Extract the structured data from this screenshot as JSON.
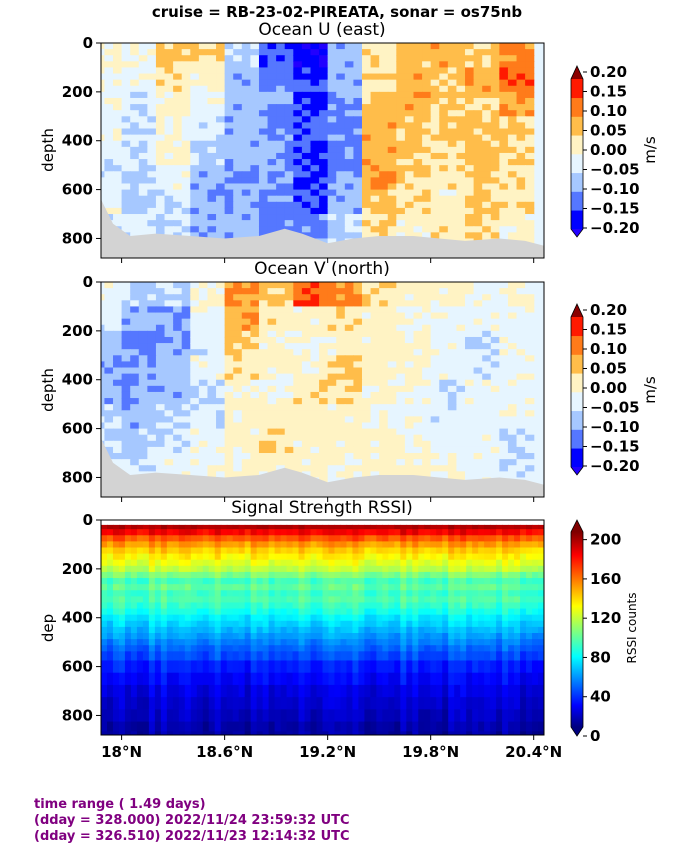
{
  "suptitle": "cruise = RB-23-02-PIREATA,  sonar = os75nb",
  "x_ticks": [
    "18°N",
    "18.6°N",
    "19.2°N",
    "19.8°N",
    "20.4°N"
  ],
  "x_values": [
    18.0,
    18.6,
    19.2,
    19.8,
    20.4
  ],
  "xlim": [
    17.88,
    20.46
  ],
  "depth_ticks": [
    "0",
    "200",
    "400",
    "600",
    "800"
  ],
  "panels": [
    {
      "title": "Ocean U (east)",
      "ylabel": "depth",
      "cbar_label": "m/s",
      "cbar_ticks": [
        "0.20",
        "0.15",
        "0.10",
        "0.05",
        "0.00",
        "−0.05",
        "−0.10",
        "−0.15",
        "−0.20"
      ]
    },
    {
      "title": "Ocean V (north)",
      "ylabel": "depth",
      "cbar_label": "m/s",
      "cbar_ticks": [
        "0.20",
        "0.15",
        "0.10",
        "0.05",
        "0.00",
        "−0.05",
        "−0.10",
        "−0.15",
        "−0.20"
      ]
    },
    {
      "title": "Signal Strength RSSI)",
      "ylabel": "dep",
      "cbar_label": "RSSI counts",
      "cbar_ticks": [
        "200",
        "160",
        "120",
        "80",
        "40",
        "0"
      ]
    }
  ],
  "chart_data": [
    {
      "type": "heatmap",
      "title": "Ocean U (east)",
      "ylabel": "depth",
      "ylim": [
        880,
        0
      ],
      "clim": [
        -0.2,
        0.2
      ],
      "levels": [
        -0.2,
        -0.15,
        -0.1,
        -0.05,
        0.0,
        0.05,
        0.1,
        0.15,
        0.2
      ],
      "colorbar_label": "m/s",
      "columns_lat": [
        17.9,
        18.1,
        18.3,
        18.5,
        18.7,
        18.9,
        19.1,
        19.3,
        19.5,
        19.7,
        19.9,
        20.1,
        20.3
      ],
      "rows_depth": [
        50,
        150,
        250,
        350,
        450,
        550,
        650,
        750,
        850
      ],
      "values": [
        [
          0.02,
          0.0,
          0.06,
          0.04,
          -0.06,
          -0.14,
          -0.18,
          -0.08,
          0.04,
          0.06,
          0.08,
          0.06,
          0.12
        ],
        [
          0.0,
          -0.02,
          0.04,
          0.02,
          -0.08,
          -0.12,
          -0.16,
          -0.08,
          0.06,
          0.08,
          0.06,
          0.08,
          0.14
        ],
        [
          -0.02,
          -0.04,
          0.02,
          -0.02,
          -0.08,
          -0.1,
          -0.14,
          -0.1,
          0.06,
          0.08,
          0.06,
          0.06,
          0.1
        ],
        [
          -0.02,
          -0.04,
          0.0,
          -0.04,
          -0.08,
          -0.1,
          -0.14,
          -0.12,
          0.08,
          0.06,
          0.06,
          0.06,
          0.06
        ],
        [
          -0.04,
          -0.06,
          0.02,
          -0.06,
          -0.08,
          -0.1,
          -0.16,
          -0.12,
          0.08,
          0.06,
          0.04,
          0.06,
          0.04
        ],
        [
          -0.04,
          -0.06,
          -0.02,
          -0.08,
          -0.1,
          -0.1,
          -0.16,
          -0.1,
          0.1,
          0.06,
          0.04,
          0.06,
          0.04
        ],
        [
          -0.02,
          -0.06,
          -0.04,
          -0.08,
          -0.1,
          -0.12,
          -0.14,
          -0.08,
          0.06,
          0.04,
          0.02,
          0.06,
          0.04
        ],
        [
          -0.04,
          -0.04,
          -0.06,
          -0.08,
          -0.08,
          -0.12,
          -0.12,
          -0.06,
          0.04,
          0.02,
          0.04,
          0.06,
          0.02
        ],
        [
          -0.02,
          -0.02,
          -0.04,
          -0.06,
          -0.08,
          -0.1,
          -0.1,
          -0.06,
          0.02,
          0.02,
          0.02,
          0.04,
          0.02
        ]
      ]
    },
    {
      "type": "heatmap",
      "title": "Ocean V (north)",
      "ylabel": "depth",
      "ylim": [
        880,
        0
      ],
      "clim": [
        -0.2,
        0.2
      ],
      "levels": [
        -0.2,
        -0.15,
        -0.1,
        -0.05,
        0.0,
        0.05,
        0.1,
        0.15,
        0.2
      ],
      "colorbar_label": "m/s",
      "columns_lat": [
        17.9,
        18.1,
        18.3,
        18.5,
        18.7,
        18.9,
        19.1,
        19.3,
        19.5,
        19.7,
        19.9,
        20.1,
        20.3
      ],
      "rows_depth": [
        50,
        150,
        250,
        350,
        450,
        550,
        650,
        750,
        850
      ],
      "values": [
        [
          -0.02,
          -0.06,
          -0.06,
          0.0,
          0.1,
          0.06,
          0.14,
          0.12,
          0.04,
          0.02,
          0.02,
          0.0,
          0.0
        ],
        [
          -0.04,
          -0.08,
          -0.1,
          -0.02,
          0.08,
          0.04,
          0.02,
          0.04,
          0.02,
          0.0,
          -0.02,
          -0.02,
          -0.02
        ],
        [
          -0.06,
          -0.12,
          -0.1,
          -0.04,
          0.06,
          0.02,
          0.0,
          0.02,
          0.02,
          0.02,
          -0.02,
          -0.04,
          -0.02
        ],
        [
          -0.08,
          -0.1,
          -0.08,
          -0.02,
          0.04,
          0.02,
          0.02,
          0.06,
          0.02,
          0.02,
          -0.02,
          -0.04,
          -0.02
        ],
        [
          -0.08,
          -0.1,
          -0.08,
          -0.04,
          0.02,
          0.0,
          0.04,
          0.04,
          0.02,
          0.0,
          -0.04,
          -0.02,
          -0.02
        ],
        [
          -0.06,
          -0.08,
          -0.06,
          -0.04,
          0.02,
          0.02,
          0.02,
          0.02,
          0.0,
          -0.02,
          -0.04,
          -0.02,
          -0.02
        ],
        [
          -0.06,
          -0.06,
          -0.04,
          -0.02,
          0.02,
          0.04,
          0.02,
          0.02,
          0.02,
          0.0,
          -0.02,
          -0.02,
          -0.04
        ],
        [
          -0.04,
          -0.04,
          -0.02,
          -0.02,
          0.0,
          0.02,
          0.02,
          0.0,
          0.02,
          0.02,
          0.0,
          -0.02,
          -0.04
        ],
        [
          -0.02,
          -0.02,
          -0.02,
          0.0,
          0.0,
          0.02,
          0.0,
          0.0,
          0.02,
          0.0,
          0.0,
          -0.02,
          -0.02
        ]
      ]
    },
    {
      "type": "heatmap",
      "title": "Signal Strength RSSI)",
      "ylabel": "dep",
      "ylim": [
        880,
        0
      ],
      "clim": [
        0,
        220
      ],
      "colorbar_label": "RSSI counts",
      "rows_depth": [
        25,
        50,
        75,
        100,
        125,
        150,
        175,
        200,
        225,
        250,
        275,
        300,
        325,
        350,
        375,
        400,
        425,
        450,
        475,
        500,
        525,
        550,
        600,
        650,
        700,
        750,
        800,
        850,
        880
      ],
      "values": [
        210,
        195,
        175,
        160,
        148,
        140,
        132,
        124,
        110,
        98,
        104,
        96,
        100,
        94,
        88,
        80,
        74,
        68,
        62,
        56,
        50,
        44,
        34,
        28,
        22,
        18,
        14,
        10,
        8
      ]
    }
  ],
  "info": {
    "line1": "time range ( 1.49 days)",
    "line2": "(dday = 328.000) 2022/11/24 23:59:32 UTC",
    "line3": "(dday = 326.510) 2022/11/23 12:14:32 UTC"
  }
}
